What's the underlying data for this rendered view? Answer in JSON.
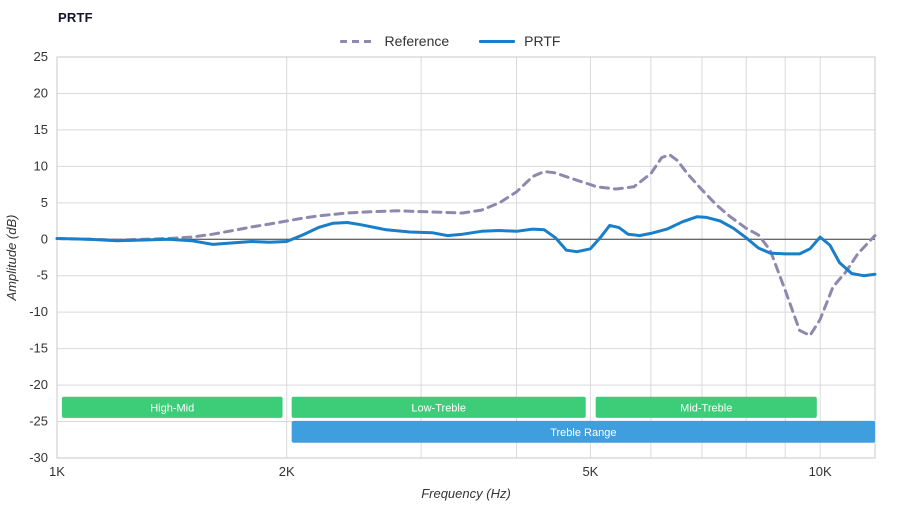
{
  "title": "PRTF",
  "legend": [
    {
      "label": "Reference",
      "color": "#8e88ae",
      "dash": true
    },
    {
      "label": "PRTF",
      "color": "#1a7ec8",
      "dash": false
    }
  ],
  "axes": {
    "x_label": "Frequency (Hz)",
    "y_label": "Amplitude (dB)",
    "x_range": [
      1000,
      11800
    ],
    "y_range": [
      -30,
      25
    ],
    "x_ticks": [
      {
        "value": 1000,
        "label": "1K"
      },
      {
        "value": 2000,
        "label": "2K"
      },
      {
        "value": 5000,
        "label": "5K"
      },
      {
        "value": 10000,
        "label": "10K"
      }
    ],
    "x_gridlines": [
      2000,
      3000,
      4000,
      5000,
      6000,
      7000,
      8000,
      9000,
      10000
    ],
    "y_ticks": [
      25,
      20,
      15,
      10,
      5,
      0,
      -5,
      -10,
      -15,
      -20,
      -25,
      -30
    ]
  },
  "chart_data": {
    "type": "line",
    "x_scale": "log",
    "title": "PRTF",
    "xlabel": "Frequency (Hz)",
    "ylabel": "Amplitude (dB)",
    "grid": true,
    "legend_position": "top-center",
    "series": [
      {
        "name": "Reference",
        "color": "#8e88ae",
        "dash": true,
        "points": [
          [
            1000,
            0.1
          ],
          [
            1100,
            0
          ],
          [
            1200,
            -0.1
          ],
          [
            1300,
            0
          ],
          [
            1400,
            0.1
          ],
          [
            1500,
            0.3
          ],
          [
            1600,
            0.7
          ],
          [
            1700,
            1.2
          ],
          [
            1800,
            1.7
          ],
          [
            1900,
            2.1
          ],
          [
            2000,
            2.5
          ],
          [
            2100,
            2.9
          ],
          [
            2200,
            3.2
          ],
          [
            2400,
            3.6
          ],
          [
            2600,
            3.8
          ],
          [
            2800,
            3.9
          ],
          [
            3000,
            3.8
          ],
          [
            3200,
            3.7
          ],
          [
            3400,
            3.6
          ],
          [
            3600,
            4.0
          ],
          [
            3800,
            5.0
          ],
          [
            4000,
            6.5
          ],
          [
            4200,
            8.6
          ],
          [
            4350,
            9.3
          ],
          [
            4500,
            9.1
          ],
          [
            4700,
            8.4
          ],
          [
            4900,
            7.8
          ],
          [
            5100,
            7.2
          ],
          [
            5400,
            6.9
          ],
          [
            5700,
            7.2
          ],
          [
            6000,
            9.0
          ],
          [
            6200,
            11.2
          ],
          [
            6350,
            11.6
          ],
          [
            6500,
            10.8
          ],
          [
            6700,
            9.0
          ],
          [
            7000,
            6.8
          ],
          [
            7300,
            4.8
          ],
          [
            7600,
            3.2
          ],
          [
            8000,
            1.5
          ],
          [
            8300,
            0.6
          ],
          [
            8600,
            -1.5
          ],
          [
            9000,
            -7.0
          ],
          [
            9400,
            -12.5
          ],
          [
            9700,
            -13.2
          ],
          [
            10000,
            -11.0
          ],
          [
            10400,
            -6.5
          ],
          [
            10800,
            -4.5
          ],
          [
            11200,
            -2.0
          ],
          [
            11600,
            -0.3
          ],
          [
            11800,
            0.5
          ]
        ]
      },
      {
        "name": "PRTF",
        "color": "#1a7ec8",
        "dash": false,
        "points": [
          [
            1000,
            0.1
          ],
          [
            1100,
            0
          ],
          [
            1200,
            -0.2
          ],
          [
            1300,
            -0.1
          ],
          [
            1400,
            0
          ],
          [
            1500,
            -0.2
          ],
          [
            1600,
            -0.7
          ],
          [
            1700,
            -0.5
          ],
          [
            1800,
            -0.3
          ],
          [
            1900,
            -0.4
          ],
          [
            2000,
            -0.3
          ],
          [
            2100,
            0.6
          ],
          [
            2200,
            1.6
          ],
          [
            2300,
            2.2
          ],
          [
            2400,
            2.3
          ],
          [
            2500,
            2.0
          ],
          [
            2700,
            1.3
          ],
          [
            2900,
            1.0
          ],
          [
            3100,
            0.9
          ],
          [
            3250,
            0.5
          ],
          [
            3400,
            0.7
          ],
          [
            3600,
            1.1
          ],
          [
            3800,
            1.2
          ],
          [
            4000,
            1.1
          ],
          [
            4200,
            1.4
          ],
          [
            4350,
            1.3
          ],
          [
            4500,
            0.2
          ],
          [
            4650,
            -1.5
          ],
          [
            4800,
            -1.7
          ],
          [
            5000,
            -1.3
          ],
          [
            5150,
            0.2
          ],
          [
            5300,
            1.9
          ],
          [
            5450,
            1.6
          ],
          [
            5600,
            0.7
          ],
          [
            5800,
            0.5
          ],
          [
            6000,
            0.8
          ],
          [
            6300,
            1.4
          ],
          [
            6600,
            2.4
          ],
          [
            6900,
            3.1
          ],
          [
            7100,
            3.0
          ],
          [
            7400,
            2.5
          ],
          [
            7700,
            1.5
          ],
          [
            8000,
            0.2
          ],
          [
            8300,
            -1.2
          ],
          [
            8600,
            -1.9
          ],
          [
            9000,
            -2.0
          ],
          [
            9400,
            -2.0
          ],
          [
            9700,
            -1.3
          ],
          [
            10000,
            0.3
          ],
          [
            10300,
            -0.8
          ],
          [
            10600,
            -3.2
          ],
          [
            11000,
            -4.7
          ],
          [
            11400,
            -5.0
          ],
          [
            11800,
            -4.8
          ]
        ]
      }
    ],
    "bands": [
      {
        "label": "High-Mid",
        "from": 1015,
        "to": 1975,
        "row": 0,
        "color": "#3dcc77"
      },
      {
        "label": "Low-Treble",
        "from": 2030,
        "to": 4930,
        "row": 0,
        "color": "#3dcc77"
      },
      {
        "label": "Mid-Treble",
        "from": 5080,
        "to": 9900,
        "row": 0,
        "color": "#3dcc77"
      },
      {
        "label": "Treble Range",
        "from": 2030,
        "to": 11800,
        "row": 1,
        "color": "#3f9ede"
      }
    ]
  }
}
